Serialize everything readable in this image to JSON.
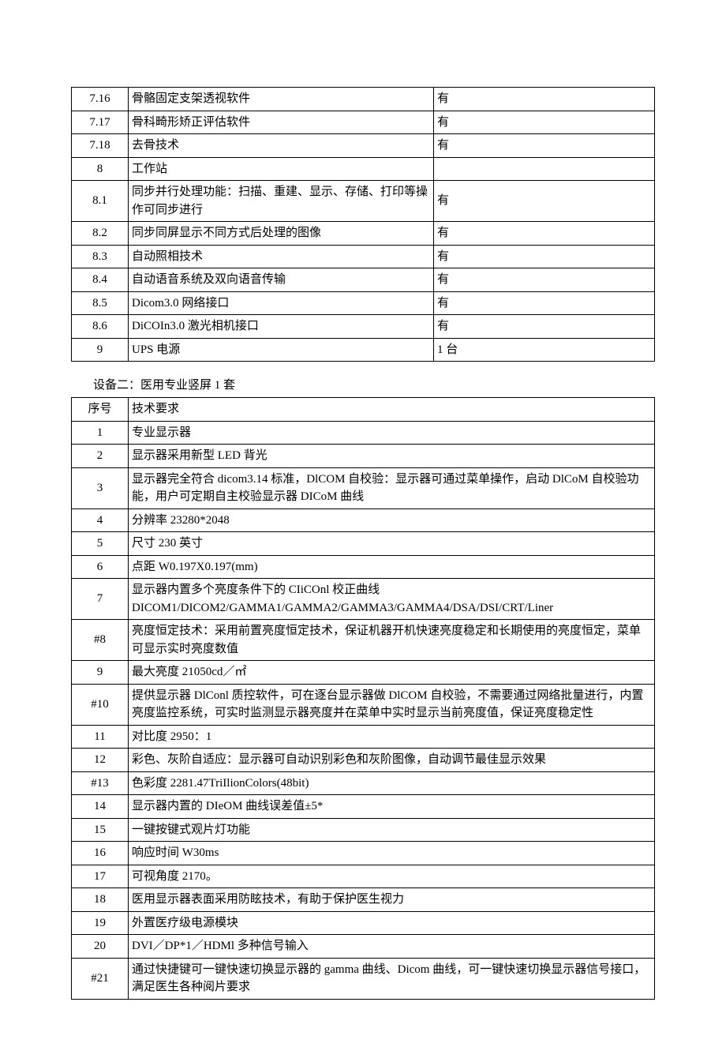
{
  "table1": {
    "rows": [
      {
        "n": "7.16",
        "d": "骨骼固定支架透视软件",
        "v": "有"
      },
      {
        "n": "7.17",
        "d": "骨科畸形矫正评估软件",
        "v": "有"
      },
      {
        "n": "7.18",
        "d": "去骨技术",
        "v": "有"
      },
      {
        "n": "8",
        "d": "工作站",
        "v": ""
      },
      {
        "n": "8.1",
        "d": "同步并行处理功能：扫描、重建、显示、存储、打印等操作可同步进行",
        "v": "有"
      },
      {
        "n": "8.2",
        "d": "同步同屏显示不同方式后处理的图像",
        "v": "有"
      },
      {
        "n": "8.3",
        "d": "自动照相技术",
        "v": "有"
      },
      {
        "n": "8.4",
        "d": "自动语音系统及双向语音传输",
        "v": "有"
      },
      {
        "n": "8.5",
        "d": "Dicom3.0 网络接口",
        "v": "有"
      },
      {
        "n": "8.6",
        "d": "DiCOIn3.0 激光相机接口",
        "v": "有"
      },
      {
        "n": "9",
        "d": "UPS 电源",
        "v": "1 台"
      }
    ]
  },
  "section2_title": "设备二：医用专业竖屏 1 套",
  "table2": {
    "header": {
      "n": "序号",
      "d": "技术要求"
    },
    "rows": [
      {
        "n": "1",
        "d": "专业显示器"
      },
      {
        "n": "2",
        "d": "显示器采用新型 LED 背光"
      },
      {
        "n": "3",
        "d": "显示器完全符合 dicom3.14 标准，DlCOM 自校验：显示器可通过菜单操作，启动 DlCoM 自校验功能，用户可定期自主校验显示器 DICoM 曲线"
      },
      {
        "n": "4",
        "d": "分辨率 23280*2048"
      },
      {
        "n": "5",
        "d": "尺寸 230 英寸"
      },
      {
        "n": "6",
        "d": "点距 W0.197X0.197(mm)"
      },
      {
        "n": "7",
        "d": "显示器内置多个亮度条件下的 CIiCOnl 校正曲线DICOM1/DICOM2/GAMMA1/GAMMA2/GAMMA3/GAMMA4/DSA/DSI/CRT/Liner"
      },
      {
        "n": "#8",
        "d": "亮度恒定技术：采用前置亮度恒定技术，保证机器开机快速亮度稳定和长期使用的亮度恒定，菜单可显示实时亮度数值"
      },
      {
        "n": "9",
        "d": "最大亮度 21050cd／㎡"
      },
      {
        "n": "#10",
        "d": "提供显示器 DlConl 质控软件，可在逐台显示器做 DlCOM 自校验，不需要通过网络批量进行，内置亮度监控系统，可实时监测显示器亮度并在菜单中实时显示当前亮度值，保证亮度稳定性"
      },
      {
        "n": "11",
        "d": "对比度 2950：1"
      },
      {
        "n": "12",
        "d": "彩色、灰阶自适应：显示器可自动识别彩色和灰阶图像，自动调节最佳显示效果"
      },
      {
        "n": "#13",
        "d": "色彩度 2281.47TriIlionColors(48bit)"
      },
      {
        "n": "14",
        "d": "显示器内置的 DIeOM 曲线误差值±5*"
      },
      {
        "n": "15",
        "d": "一键按键式观片灯功能"
      },
      {
        "n": "16",
        "d": "响应时间 W30ms"
      },
      {
        "n": "17",
        "d": "可视角度 2170。"
      },
      {
        "n": "18",
        "d": "医用显示器表面采用防眩技术，有助于保护医生视力"
      },
      {
        "n": "19",
        "d": "外置医疗级电源模块"
      },
      {
        "n": "20",
        "d": "DVI／DP*1／HDMl 多种信号输入"
      },
      {
        "n": "#21",
        "d": "通过快捷键可一键快速切换显示器的 gamma 曲线、Dicom 曲线，可一键快速切换显示器信号接口，满足医生各种阅片要求"
      }
    ]
  }
}
